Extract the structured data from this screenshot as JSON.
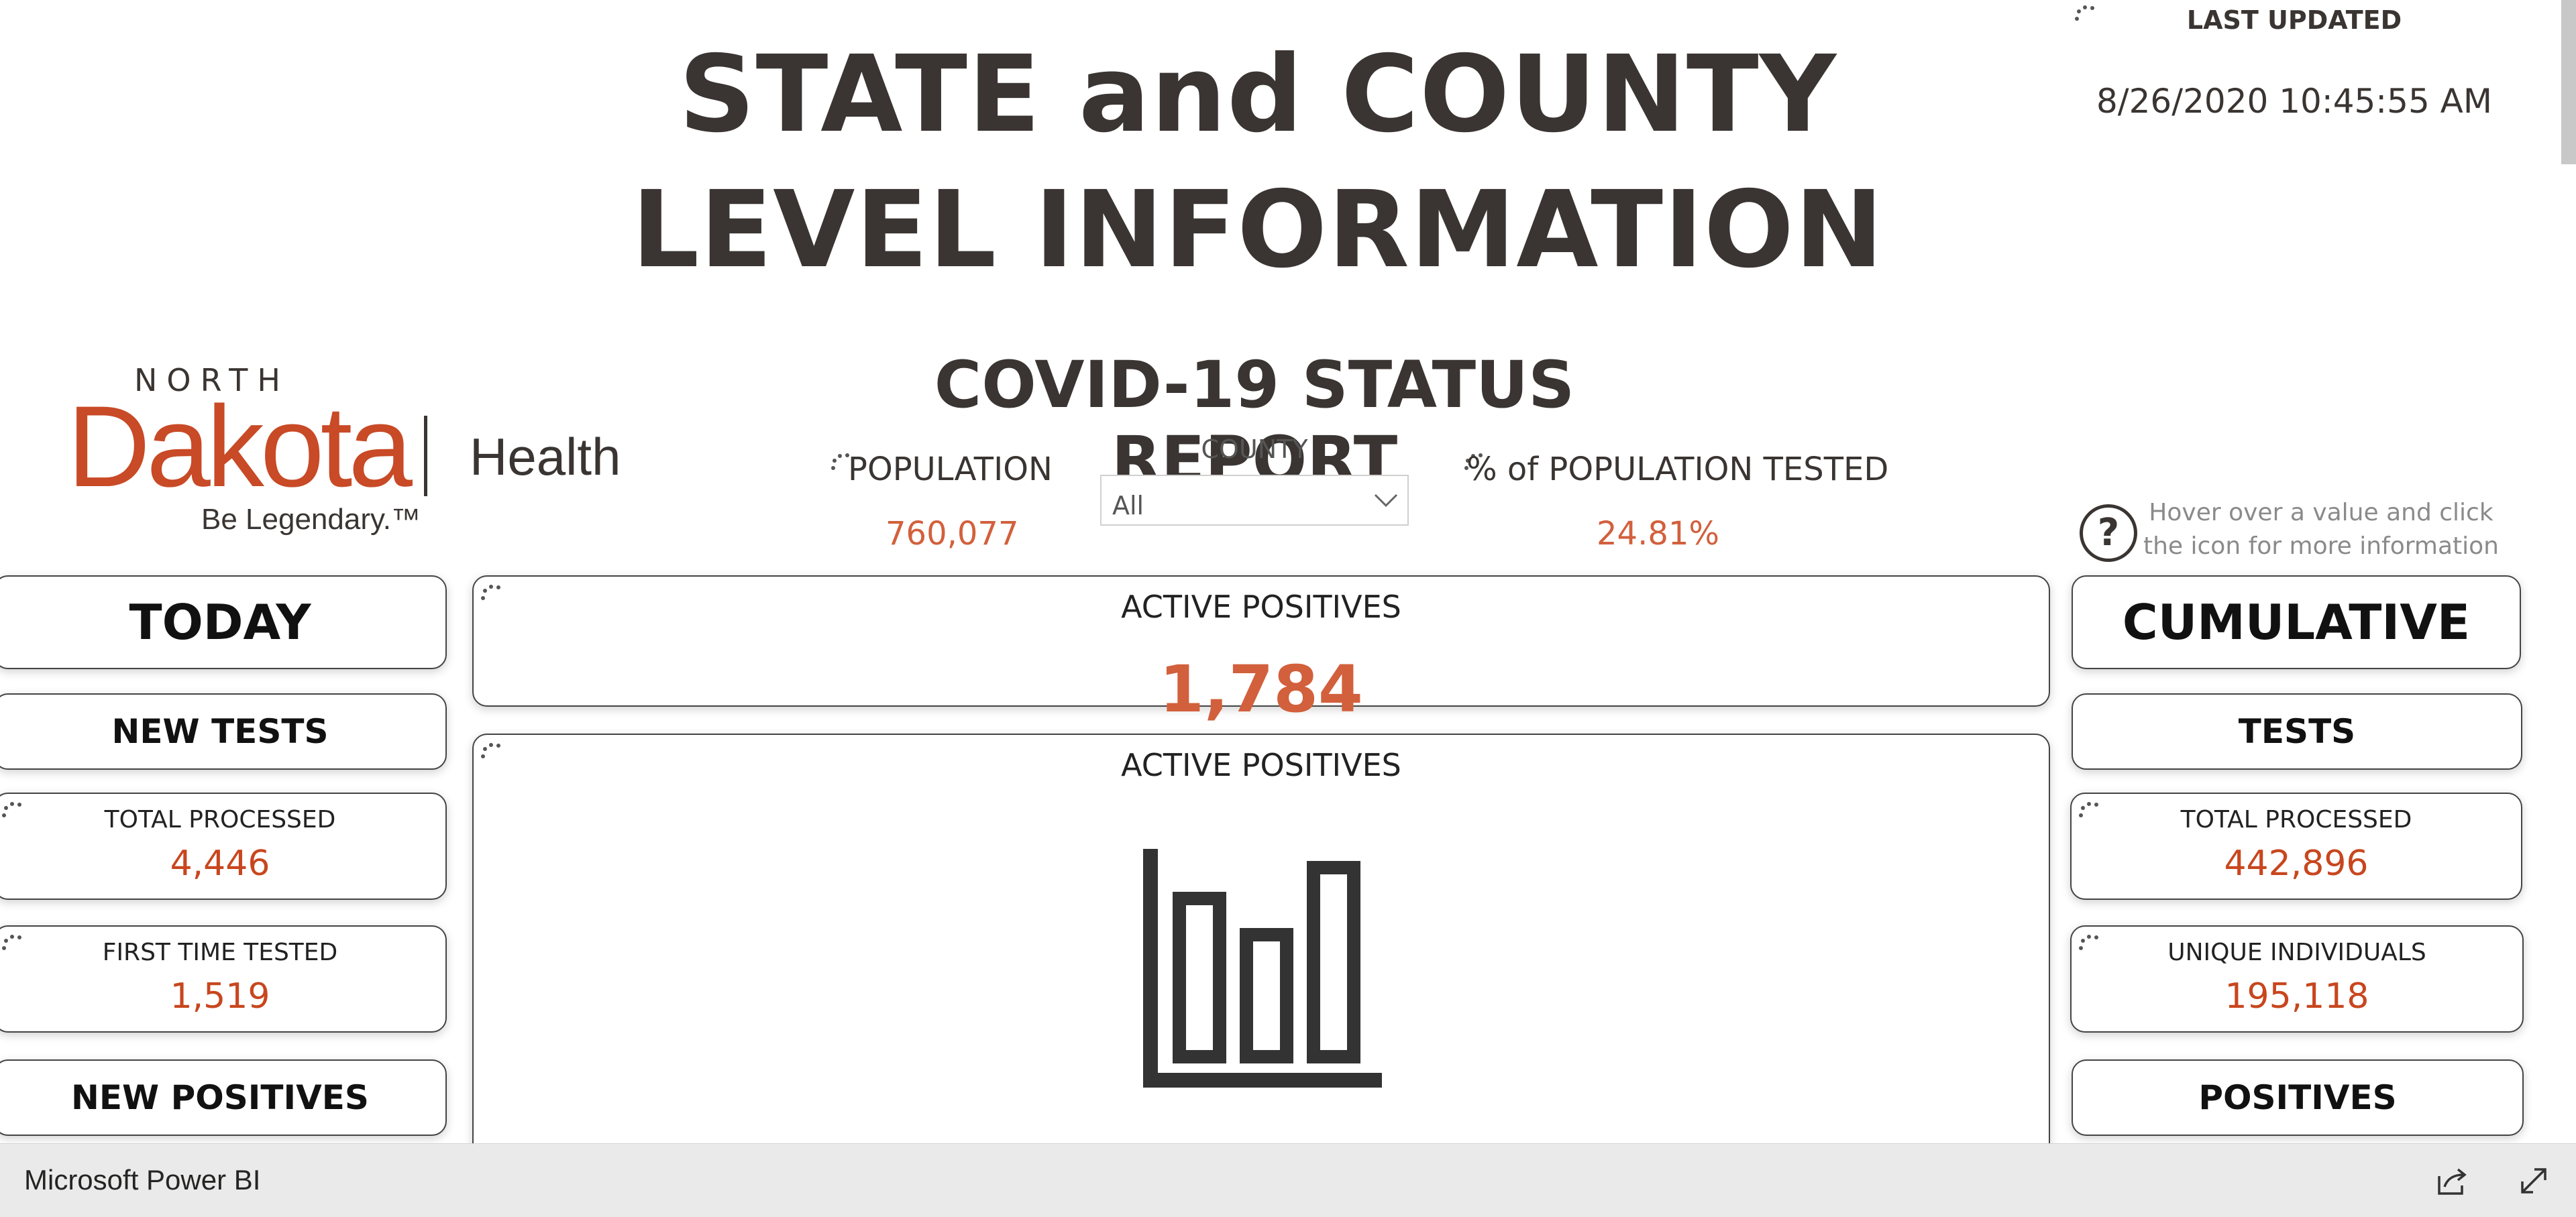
{
  "report": {
    "title_line1": "STATE and COUNTY",
    "title_line2": "LEVEL INFORMATION",
    "last_updated_label": "LAST UPDATED",
    "last_updated_value": "8/26/2020 10:45:55 AM",
    "subtitle": "COVID-19 STATUS REPORT",
    "logo": {
      "north": "NORTH",
      "dakota": "Dakota",
      "health": "Health",
      "tagline": "Be Legendary.™"
    },
    "population_label": "POPULATION",
    "population_value": "760,077",
    "county_label": "COUNTY",
    "county_value": "All",
    "pct_tested_label": "% of POPULATION TESTED",
    "pct_tested_value": "24.81%",
    "help_text": "Hover over a value and click the icon for more information",
    "help_symbol": "?"
  },
  "today": {
    "header": "TODAY",
    "new_tests_header": "NEW TESTS",
    "total_processed_label": "TOTAL PROCESSED",
    "total_processed_value": "4,446",
    "first_time_label": "FIRST TIME TESTED",
    "first_time_value": "1,519",
    "new_positives_header": "NEW POSITIVES"
  },
  "cumulative": {
    "header": "CUMULATIVE",
    "tests_header": "TESTS",
    "total_processed_label": "TOTAL PROCESSED",
    "total_processed_value": "442,896",
    "unique_label": "UNIQUE INDIVIDUALS",
    "unique_value": "195,118",
    "positives_header": "POSITIVES"
  },
  "center": {
    "active_positives_label": "ACTIVE POSITIVES",
    "active_positives_value": "1,784",
    "chart_title": "ACTIVE POSITIVES"
  },
  "footer": {
    "brand": "Microsoft Power BI"
  },
  "colors": {
    "accent": "#c8461e",
    "value_light": "#d2603c",
    "text_dark": "#3a3532"
  }
}
